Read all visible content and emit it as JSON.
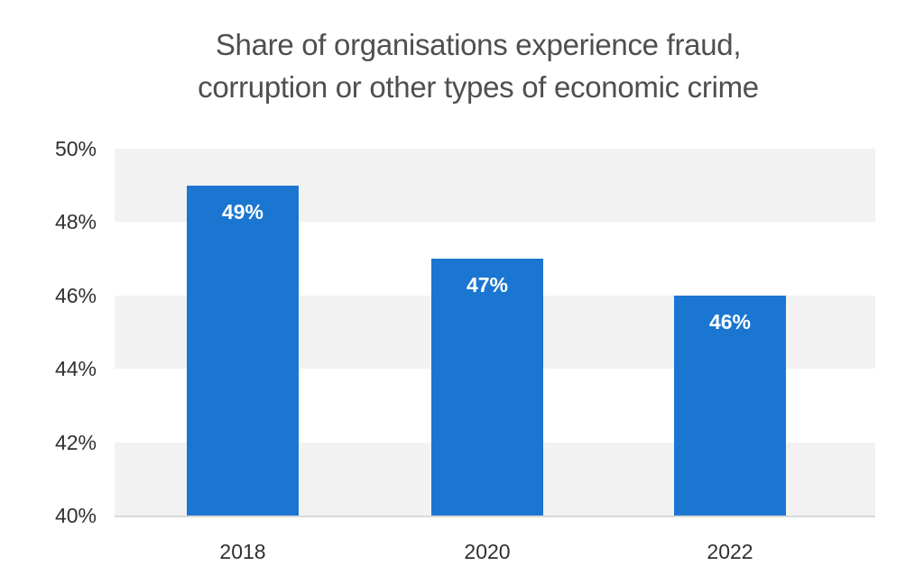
{
  "chart_data": {
    "type": "bar",
    "title": "Share of organisations experience fraud, corruption or other types of economic crime",
    "title_lines": [
      "Share of organisations experience fraud,",
      "corruption or other types of economic crime"
    ],
    "categories": [
      "2018",
      "2020",
      "2022"
    ],
    "values": [
      49,
      47,
      46
    ],
    "value_labels": [
      "49%",
      "47%",
      "46%"
    ],
    "ylim": [
      40,
      50
    ],
    "ytick_step": 2,
    "yticks": [
      {
        "label": "50%",
        "value": 50
      },
      {
        "label": "48%",
        "value": 48
      },
      {
        "label": "46%",
        "value": 46
      },
      {
        "label": "44%",
        "value": 44
      },
      {
        "label": "42%",
        "value": 42
      },
      {
        "label": "40%",
        "value": 40
      }
    ],
    "xlabel": "",
    "ylabel": "",
    "legend": "none",
    "grid": "banded-horizontal",
    "colors": {
      "bar": "#1b76d2",
      "band": "#f2f2f2",
      "baseline": "#d8d8d8",
      "bar_label_text": "#ffffff",
      "axis_text": "#303030",
      "title_text": "#4f4f4f",
      "background": "#ffffff"
    }
  }
}
